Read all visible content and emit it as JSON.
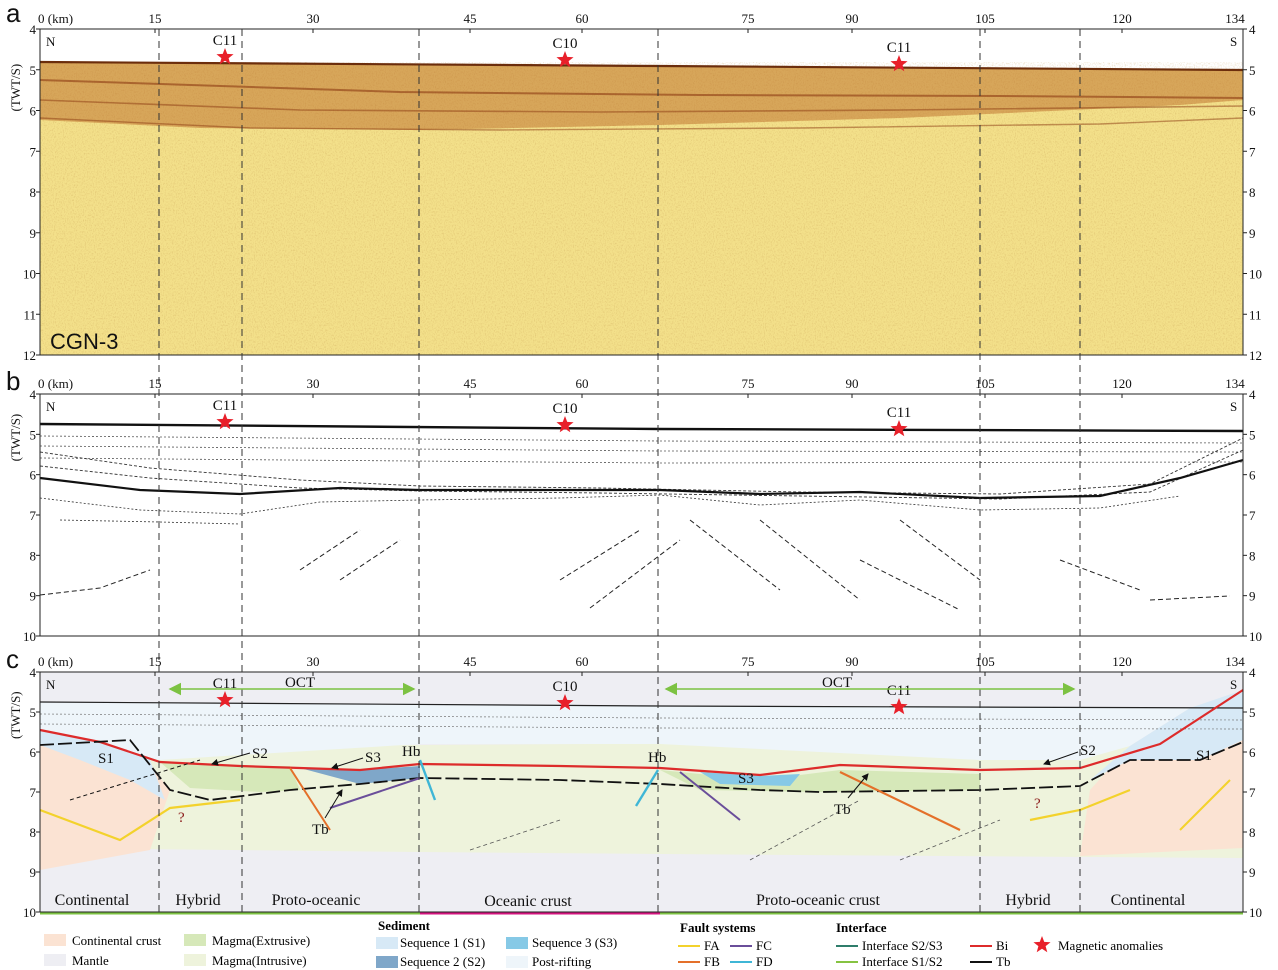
{
  "panels": [
    {
      "letter": "a",
      "profile_label": "CGN-3",
      "distance_unit": "0 (km)",
      "distance_ticks": [
        "15",
        "30",
        "45",
        "60",
        "75",
        "90",
        "105",
        "120",
        "134"
      ],
      "depth_axis_label": "(TWT/S)",
      "depth_ticks": [
        "4",
        "5",
        "6",
        "7",
        "8",
        "9",
        "10",
        "11",
        "12"
      ],
      "left_end": "N",
      "right_end": "S",
      "anomalies": [
        "C11",
        "C10",
        "C11"
      ]
    },
    {
      "letter": "b",
      "distance_unit": "0 (km)",
      "distance_ticks": [
        "15",
        "30",
        "45",
        "60",
        "75",
        "90",
        "105",
        "120",
        "134"
      ],
      "depth_axis_label": "(TWT/S)",
      "depth_ticks": [
        "4",
        "5",
        "6",
        "7",
        "8",
        "9",
        "10"
      ],
      "left_end": "N",
      "right_end": "S",
      "anomalies": [
        "C11",
        "C10",
        "C11"
      ]
    },
    {
      "letter": "c",
      "distance_unit": "0 (km)",
      "distance_ticks": [
        "15",
        "30",
        "45",
        "60",
        "75",
        "90",
        "105",
        "120",
        "134"
      ],
      "depth_axis_label": "(TWT/S)",
      "depth_ticks": [
        "4",
        "5",
        "6",
        "7",
        "8",
        "9",
        "10"
      ],
      "left_end": "N",
      "right_end": "S",
      "anomalies": [
        "C11",
        "C10",
        "C11"
      ],
      "oct_labels": [
        "OCT",
        "OCT"
      ],
      "annotations": [
        "S1",
        "S2",
        "S3",
        "Hb",
        "Hb",
        "S3",
        "S2",
        "S1",
        "Tb",
        "Tb",
        "?",
        "?"
      ],
      "zones": [
        "Continental",
        "Hybrid",
        "Proto-oceanic",
        "Oceanic crust",
        "Proto-oceanic crust",
        "Hybrid",
        "Continental"
      ]
    }
  ],
  "legend": {
    "crust": {
      "continental": "Continental crust",
      "mantle": "Mantle",
      "magma_ext": "Magma(Extrusive)",
      "magma_int": "Magma(Intrusive)"
    },
    "sediment": {
      "title": "Sediment",
      "s1": "Sequence 1 (S1)",
      "s2": "Sequence 2 (S2)",
      "s3": "Sequence 3 (S3)",
      "post": "Post-rifting"
    },
    "faults": {
      "title": "Fault systems",
      "fa": "FA",
      "fb": "FB",
      "fc": "FC",
      "fd": "FD"
    },
    "interface": {
      "title": "Interface",
      "s2s3": "Interface S2/S3",
      "s1s2": "Interface S1/S2",
      "bi": "Bi",
      "tb": "Tb"
    },
    "magnetic": "Magnetic anomalies"
  },
  "colors": {
    "seismic_base": "#f3e08a",
    "seismic_band": "#b5601f",
    "continental": "#fbe3d3",
    "mantle": "#eeeef3",
    "magma_ext": "#d6e8b9",
    "magma_int": "#eef3dc",
    "s1": "#d7e9f6",
    "s2": "#7fa7c9",
    "s3": "#86c9e6",
    "post_rift": "#eef5fa",
    "fault_a": "#f3d22c",
    "fault_b": "#e4702a",
    "fault_c": "#6a4e9a",
    "fault_d": "#3fb6d6",
    "int_s2s3": "#2f7d6b",
    "int_s1s2": "#86c341",
    "bi": "#dd2b2b",
    "tb": "#111111",
    "oct_arrow": "#7cc242",
    "zone_green": "#7cc242",
    "zone_magenta": "#d4147f",
    "star": "#e8202a"
  }
}
